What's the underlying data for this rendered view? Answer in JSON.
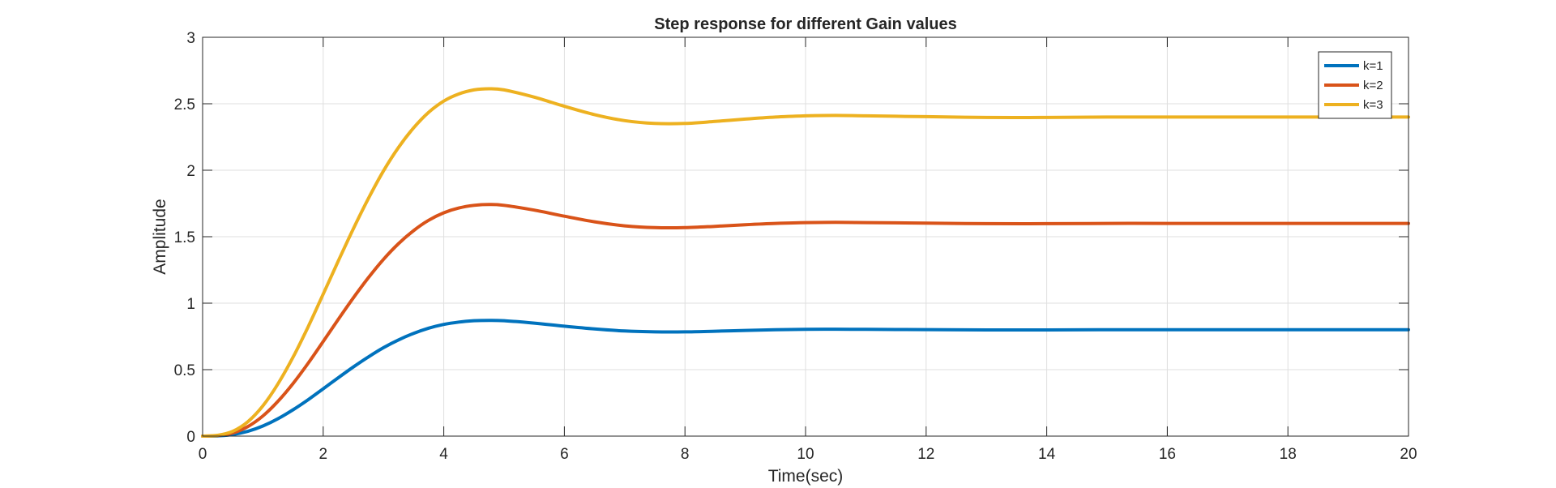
{
  "chart_data": {
    "type": "line",
    "title": "Step response for different Gain values",
    "xlabel": "Time(sec)",
    "ylabel": "Amplitude",
    "xlim": [
      0,
      20
    ],
    "ylim": [
      0,
      3
    ],
    "xticks": [
      0,
      2,
      4,
      6,
      8,
      10,
      12,
      14,
      16,
      18,
      20
    ],
    "yticks": [
      0,
      0.5,
      1,
      1.5,
      2,
      2.5,
      3
    ],
    "grid": true,
    "legend_position": "top-right",
    "x": [
      0,
      0.25,
      0.5,
      0.75,
      1,
      1.25,
      1.5,
      1.75,
      2,
      2.25,
      2.5,
      2.75,
      3,
      3.25,
      3.5,
      3.75,
      4,
      4.25,
      4.5,
      4.75,
      5,
      5.5,
      6,
      6.5,
      7,
      7.5,
      8,
      8.5,
      9,
      9.5,
      10,
      10.5,
      11,
      11.5,
      12,
      13,
      14,
      15,
      16,
      17,
      18,
      19,
      20
    ],
    "series": [
      {
        "name": "k=1",
        "color": "#0072BD",
        "values": [
          0,
          0.002,
          0.012,
          0.036,
          0.076,
          0.131,
          0.198,
          0.274,
          0.356,
          0.439,
          0.52,
          0.596,
          0.665,
          0.724,
          0.773,
          0.812,
          0.84,
          0.858,
          0.868,
          0.871,
          0.868,
          0.85,
          0.827,
          0.806,
          0.791,
          0.784,
          0.784,
          0.789,
          0.795,
          0.8,
          0.803,
          0.804,
          0.803,
          0.802,
          0.801,
          0.799,
          0.799,
          0.8,
          0.8,
          0.8,
          0.8,
          0.8,
          0.8
        ]
      },
      {
        "name": "k=2",
        "color": "#D95319",
        "values": [
          0,
          0.004,
          0.024,
          0.072,
          0.152,
          0.262,
          0.396,
          0.548,
          0.712,
          0.878,
          1.04,
          1.192,
          1.33,
          1.448,
          1.546,
          1.624,
          1.68,
          1.716,
          1.736,
          1.742,
          1.736,
          1.7,
          1.654,
          1.612,
          1.582,
          1.568,
          1.568,
          1.578,
          1.59,
          1.6,
          1.606,
          1.608,
          1.606,
          1.604,
          1.602,
          1.598,
          1.598,
          1.6,
          1.6,
          1.6,
          1.6,
          1.6,
          1.6
        ]
      },
      {
        "name": "k=3",
        "color": "#EDB120",
        "values": [
          0,
          0.006,
          0.036,
          0.108,
          0.228,
          0.393,
          0.594,
          0.822,
          1.068,
          1.317,
          1.56,
          1.788,
          1.995,
          2.172,
          2.319,
          2.436,
          2.52,
          2.574,
          2.604,
          2.613,
          2.604,
          2.55,
          2.481,
          2.418,
          2.373,
          2.352,
          2.352,
          2.367,
          2.385,
          2.4,
          2.409,
          2.412,
          2.409,
          2.406,
          2.403,
          2.397,
          2.397,
          2.4,
          2.4,
          2.4,
          2.4,
          2.4,
          2.4
        ]
      }
    ]
  }
}
